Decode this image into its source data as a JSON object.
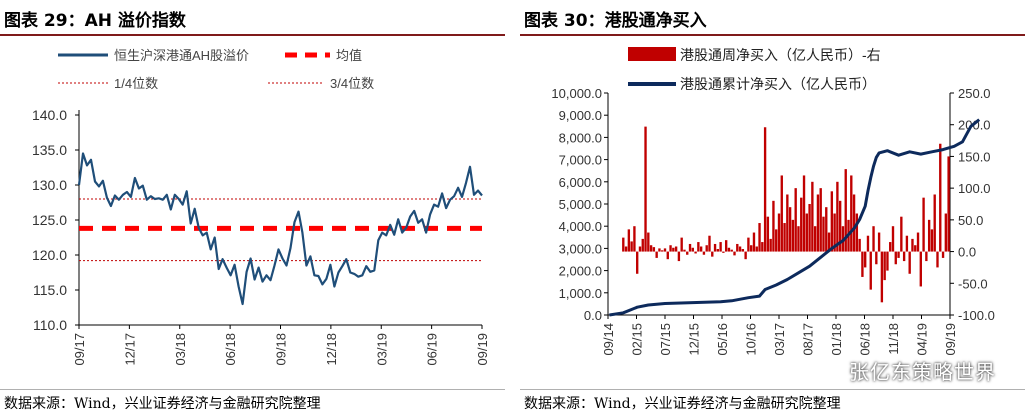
{
  "watermark": "张亿东策略世界",
  "left": {
    "title": "图表 29：AH 溢价指数",
    "source": "数据来源：Wind，兴业证券经济与金融研究院整理",
    "chart_data": {
      "type": "line",
      "title": "",
      "ylim": [
        110,
        140
      ],
      "yticks": [
        "140.0",
        "135.0",
        "130.0",
        "125.0",
        "120.0",
        "115.0",
        "110.0"
      ],
      "xticks": [
        "09/17",
        "12/17",
        "03/18",
        "06/18",
        "09/18",
        "12/18",
        "03/19",
        "06/19",
        "09/19"
      ],
      "legend": [
        "恒生沪深港通AH股溢价",
        "均值",
        "1/4位数",
        "3/4位数"
      ],
      "colors": {
        "series": "#1f4e79",
        "mean": "#ff0000",
        "quartile": "#c00000"
      },
      "mean": 123.8,
      "q1": 119.2,
      "q3": 128.0,
      "series": [
        {
          "name": "恒生沪深港通AH股溢价",
          "points": [
            [
              0.0,
              130.0
            ],
            [
              1.0,
              134.5
            ],
            [
              2.0,
              132.8
            ],
            [
              3.0,
              133.6
            ],
            [
              4.0,
              130.5
            ],
            [
              5.0,
              129.8
            ],
            [
              6.0,
              130.6
            ],
            [
              7.0,
              128.2
            ],
            [
              8.0,
              127.0
            ],
            [
              9.0,
              128.5
            ],
            [
              10.0,
              127.9
            ],
            [
              11.0,
              128.6
            ],
            [
              12.0,
              129.0
            ],
            [
              13.0,
              128.3
            ],
            [
              14.0,
              131.0
            ],
            [
              15.0,
              129.5
            ],
            [
              16.0,
              129.9
            ],
            [
              17.0,
              127.9
            ],
            [
              18.0,
              128.4
            ],
            [
              19.0,
              128.0
            ],
            [
              20.0,
              128.1
            ],
            [
              21.0,
              127.9
            ],
            [
              22.0,
              128.6
            ],
            [
              23.0,
              126.5
            ],
            [
              24.0,
              128.6
            ],
            [
              25.0,
              128.0
            ],
            [
              26.0,
              127.2
            ],
            [
              27.0,
              129.1
            ],
            [
              28.0,
              124.5
            ],
            [
              29.0,
              126.6
            ],
            [
              30.0,
              123.9
            ],
            [
              31.0,
              122.8
            ],
            [
              32.0,
              123.2
            ],
            [
              33.0,
              120.8
            ],
            [
              34.0,
              122.5
            ],
            [
              35.0,
              118.0
            ],
            [
              36.0,
              119.4
            ],
            [
              37.0,
              118.2
            ],
            [
              38.0,
              117.1
            ],
            [
              39.0,
              118.6
            ],
            [
              40.0,
              115.5
            ],
            [
              41.0,
              113.0
            ],
            [
              42.0,
              117.6
            ],
            [
              43.0,
              119.5
            ],
            [
              44.0,
              116.5
            ],
            [
              45.0,
              118.2
            ],
            [
              46.0,
              116.2
            ],
            [
              47.0,
              117.1
            ],
            [
              48.0,
              116.4
            ],
            [
              49.0,
              118.5
            ],
            [
              50.0,
              120.8
            ],
            [
              51.0,
              119.5
            ],
            [
              52.0,
              118.5
            ],
            [
              53.0,
              121.0
            ],
            [
              54.0,
              124.7
            ],
            [
              55.0,
              126.2
            ],
            [
              56.0,
              123.2
            ],
            [
              57.0,
              118.5
            ],
            [
              58.0,
              119.8
            ],
            [
              59.0,
              117.1
            ],
            [
              60.0,
              117.0
            ],
            [
              61.0,
              115.8
            ],
            [
              62.0,
              116.6
            ],
            [
              63.0,
              118.6
            ],
            [
              64.0,
              115.5
            ],
            [
              65.0,
              117.5
            ],
            [
              66.0,
              118.4
            ],
            [
              67.0,
              119.4
            ],
            [
              68.0,
              117.5
            ],
            [
              69.0,
              117.3
            ],
            [
              70.0,
              116.9
            ],
            [
              71.0,
              117.1
            ],
            [
              72.0,
              118.4
            ],
            [
              73.0,
              117.6
            ],
            [
              74.0,
              117.8
            ],
            [
              75.0,
              122.1
            ],
            [
              76.0,
              123.2
            ],
            [
              77.0,
              122.8
            ],
            [
              78.0,
              124.3
            ],
            [
              79.0,
              122.9
            ],
            [
              80.0,
              125.1
            ],
            [
              81.0,
              123.2
            ],
            [
              82.0,
              123.9
            ],
            [
              83.0,
              125.5
            ],
            [
              84.0,
              126.3
            ],
            [
              85.0,
              124.6
            ],
            [
              86.0,
              125.1
            ],
            [
              87.0,
              123.2
            ],
            [
              88.0,
              125.8
            ],
            [
              89.0,
              127.2
            ],
            [
              90.0,
              126.9
            ],
            [
              91.0,
              128.8
            ],
            [
              92.0,
              126.7
            ],
            [
              93.0,
              127.9
            ],
            [
              94.0,
              128.4
            ],
            [
              95.0,
              129.6
            ],
            [
              96.0,
              128.3
            ],
            [
              97.0,
              130.3
            ],
            [
              98.0,
              132.6
            ],
            [
              99.0,
              128.6
            ],
            [
              100.0,
              129.2
            ],
            [
              101.0,
              128.5
            ]
          ]
        }
      ]
    }
  },
  "right": {
    "title": "图表 30：港股通净买入",
    "source": "数据来源：Wind，兴业证券经济与金融研究院整理",
    "chart_data": {
      "type": "bar",
      "title": "",
      "ylim": [
        0,
        10000
      ],
      "y2lim": [
        -100,
        250
      ],
      "yticks": [
        "10,000.0",
        "9,000.0",
        "8,000.0",
        "7,000.0",
        "6,000.0",
        "5,000.0",
        "4,000.0",
        "3,000.0",
        "2,000.0",
        "1,000.0",
        "0.0"
      ],
      "y2ticks": [
        "250.0",
        "200.0",
        "150.0",
        "100.0",
        "50.0",
        "0.0",
        "-50.0",
        "-100.0"
      ],
      "xticks": [
        "09/14",
        "02/15",
        "07/15",
        "12/15",
        "05/16",
        "10/16",
        "03/17",
        "08/17",
        "01/18",
        "06/18",
        "11/18",
        "04/19",
        "09/19"
      ],
      "legend": [
        "港股通周净买入（亿人民币）-右",
        "港股通累计净买入（亿人民币）"
      ],
      "colors": {
        "bars": "#c00000",
        "line": "#0d2a5c"
      },
      "series": [
        {
          "name": "港股通周净买入（亿人民币）-右",
          "axis": "right",
          "values": [
            0,
            0,
            0,
            0,
            0,
            22,
            8,
            35,
            16,
            40,
            -35,
            8,
            20,
            197,
            30,
            10,
            7,
            -10,
            5,
            2,
            5,
            -12,
            10,
            6,
            8,
            -15,
            22,
            3,
            -5,
            12,
            6,
            -3,
            15,
            8,
            -5,
            10,
            25,
            -8,
            12,
            4,
            15,
            -2,
            18,
            6,
            3,
            -6,
            12,
            8,
            4,
            -12,
            22,
            10,
            30,
            8,
            45,
            15,
            196,
            55,
            20,
            80,
            35,
            60,
            120,
            45,
            90,
            70,
            50,
            100,
            40,
            85,
            120,
            60,
            75,
            110,
            40,
            90,
            100,
            55,
            70,
            30,
            95,
            60,
            110,
            80,
            40,
            130,
            50,
            120,
            90,
            60,
            20,
            -40,
            -25,
            25,
            -60,
            40,
            -20,
            30,
            -80,
            -45,
            -30,
            15,
            40,
            -20,
            -10,
            55,
            -15,
            25,
            -35,
            20,
            10,
            30,
            -55,
            85,
            -15,
            50,
            35,
            90,
            -25,
            170,
            -10,
            60,
            150
          ]
        },
        {
          "name": "港股通累计净买入（亿人民币）",
          "axis": "left",
          "points": [
            [
              0,
              0
            ],
            [
              5,
              100
            ],
            [
              10,
              350
            ],
            [
              14,
              450
            ],
            [
              20,
              520
            ],
            [
              30,
              560
            ],
            [
              40,
              600
            ],
            [
              44,
              640
            ],
            [
              50,
              780
            ],
            [
              54,
              850
            ],
            [
              56,
              1150
            ],
            [
              60,
              1350
            ],
            [
              64,
              1600
            ],
            [
              68,
              1900
            ],
            [
              72,
              2200
            ],
            [
              76,
              2600
            ],
            [
              80,
              3000
            ],
            [
              84,
              3350
            ],
            [
              88,
              3900
            ],
            [
              90,
              4300
            ],
            [
              92,
              4900
            ],
            [
              93,
              5600
            ],
            [
              94,
              6200
            ],
            [
              95,
              6700
            ],
            [
              96,
              7100
            ],
            [
              97,
              7300
            ],
            [
              100,
              7400
            ],
            [
              104,
              7200
            ],
            [
              108,
              7350
            ],
            [
              112,
              7250
            ],
            [
              116,
              7350
            ],
            [
              120,
              7450
            ],
            [
              124,
              7600
            ],
            [
              127,
              7800
            ],
            [
              130,
              8500
            ],
            [
              132,
              8700
            ],
            [
              133,
              8800
            ]
          ]
        }
      ]
    }
  }
}
